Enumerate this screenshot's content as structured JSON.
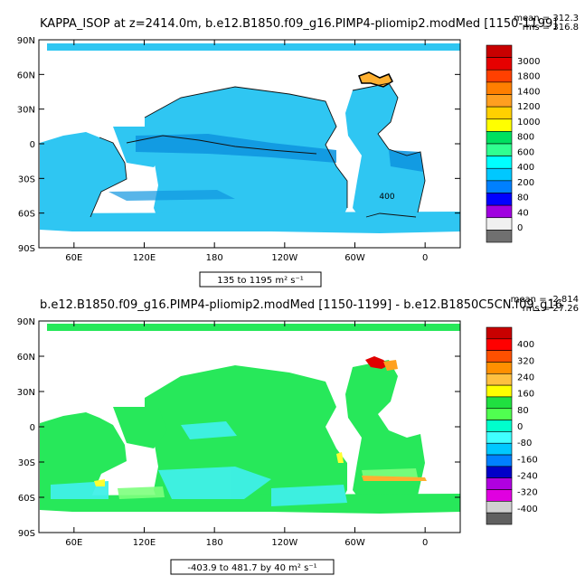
{
  "chart_data": [
    {
      "type": "heatmap",
      "title": "KAPPA_ISOP at z=2414.0m, b.e12.B1850.f09_g16.PIMP4-pliomip2.modMed [1150-1199]",
      "stat_mean": "mean = 312.3",
      "stat_rms": "rms = 316.8",
      "range_label": "135 to 1195 m² s⁻¹",
      "x_ticks": [
        "60E",
        "120E",
        "180",
        "120W",
        "60W",
        "0"
      ],
      "x_tick_lon": [
        60,
        120,
        180,
        240,
        300,
        360
      ],
      "y_ticks": [
        "90N",
        "60N",
        "30N",
        "0",
        "30S",
        "60S",
        "90S"
      ],
      "y_tick_lat": [
        90,
        60,
        30,
        0,
        -30,
        -60,
        -90
      ],
      "lon_range": [
        30,
        390
      ],
      "lat_range": [
        -90,
        90
      ],
      "contour_label": "400",
      "colorbar": {
        "labels": [
          "3000",
          "1800",
          "1400",
          "1200",
          "1000",
          "800",
          "600",
          "400",
          "200",
          "80",
          "40",
          "0"
        ],
        "colors": [
          "#c80000",
          "#e60000",
          "#ff4000",
          "#ff7f00",
          "#ff9f20",
          "#ffd000",
          "#ffff00",
          "#00e060",
          "#30ff90",
          "#00ffff",
          "#00c8ff",
          "#0080ff",
          "#0000ff",
          "#a000e0",
          "#f0f0f0",
          "#707070"
        ]
      }
    },
    {
      "type": "heatmap",
      "title": "b.e12.B1850.f09_g16.PIMP4-pliomip2.modMed [1150-1199] - b.e12.B1850C5CN.f09_g16",
      "stat_mean": "mean = -2.814",
      "stat_rms": "rms = 27.26",
      "range_label": "-403.9 to 481.7 by 40 m² s⁻¹",
      "x_ticks": [
        "60E",
        "120E",
        "180",
        "120W",
        "60W",
        "0"
      ],
      "x_tick_lon": [
        60,
        120,
        180,
        240,
        300,
        360
      ],
      "y_ticks": [
        "90N",
        "60N",
        "30N",
        "0",
        "30S",
        "60S",
        "90S"
      ],
      "y_tick_lat": [
        90,
        60,
        30,
        0,
        -30,
        -60,
        -90
      ],
      "lon_range": [
        30,
        390
      ],
      "lat_range": [
        -90,
        90
      ],
      "colorbar": {
        "labels": [
          "400",
          "320",
          "240",
          "160",
          "80",
          "0",
          "-80",
          "-160",
          "-240",
          "-320",
          "-400"
        ],
        "colors": [
          "#c80000",
          "#ff0000",
          "#ff5000",
          "#ff9000",
          "#ffc040",
          "#ffff00",
          "#20e040",
          "#50ff50",
          "#00ffcc",
          "#40ffff",
          "#00c8ff",
          "#0080ff",
          "#0000c8",
          "#b000e0",
          "#e000e0",
          "#d0d0d0",
          "#606060"
        ]
      }
    }
  ]
}
